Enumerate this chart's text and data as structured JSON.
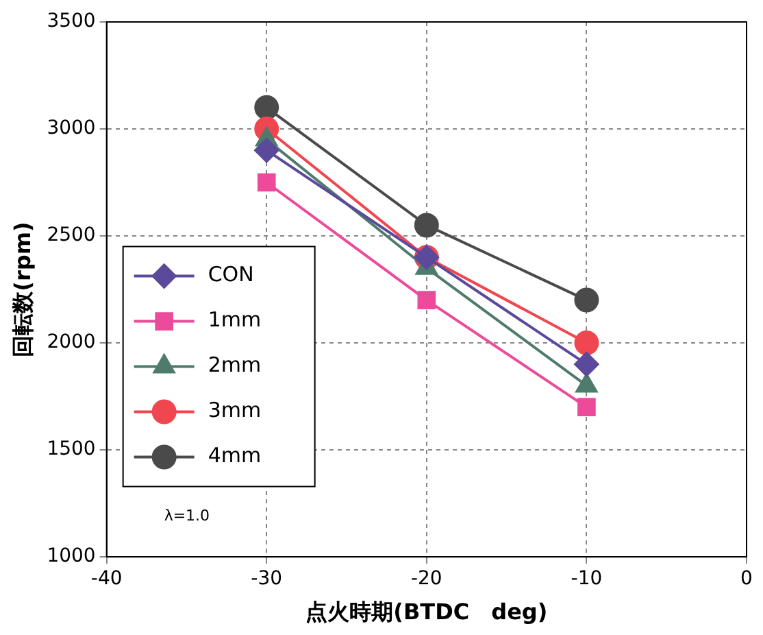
{
  "chart_data": {
    "type": "line",
    "xlabel": "点火時期(BTDC　deg)",
    "ylabel": "回転数(rpm)",
    "x": [
      -30,
      -20,
      -10
    ],
    "series": [
      {
        "name": "CON",
        "color": "#5b4a9c",
        "values": [
          2900,
          2400,
          1900
        ],
        "marker": "diamond"
      },
      {
        "name": "1mm",
        "color": "#ec4a9a",
        "values": [
          2750,
          2200,
          1700
        ],
        "marker": "square"
      },
      {
        "name": "2mm",
        "color": "#4f7b6c",
        "values": [
          2950,
          2350,
          1800
        ],
        "marker": "triangle"
      },
      {
        "name": "3mm",
        "color": "#f0464f",
        "values": [
          3000,
          2400,
          2000
        ],
        "marker": "circle"
      },
      {
        "name": "4mm",
        "color": "#4a4a4a",
        "values": [
          3100,
          2550,
          2200
        ],
        "marker": "circle"
      }
    ],
    "xlim": [
      -40,
      0
    ],
    "xticks": [
      -40,
      -30,
      -20,
      -10,
      0
    ],
    "ylim": [
      1000,
      3500
    ],
    "yticks": [
      1000,
      1500,
      2000,
      2500,
      3000,
      3500
    ],
    "grid": true,
    "legend": "left",
    "annotations": [
      "λ=1.0"
    ]
  }
}
